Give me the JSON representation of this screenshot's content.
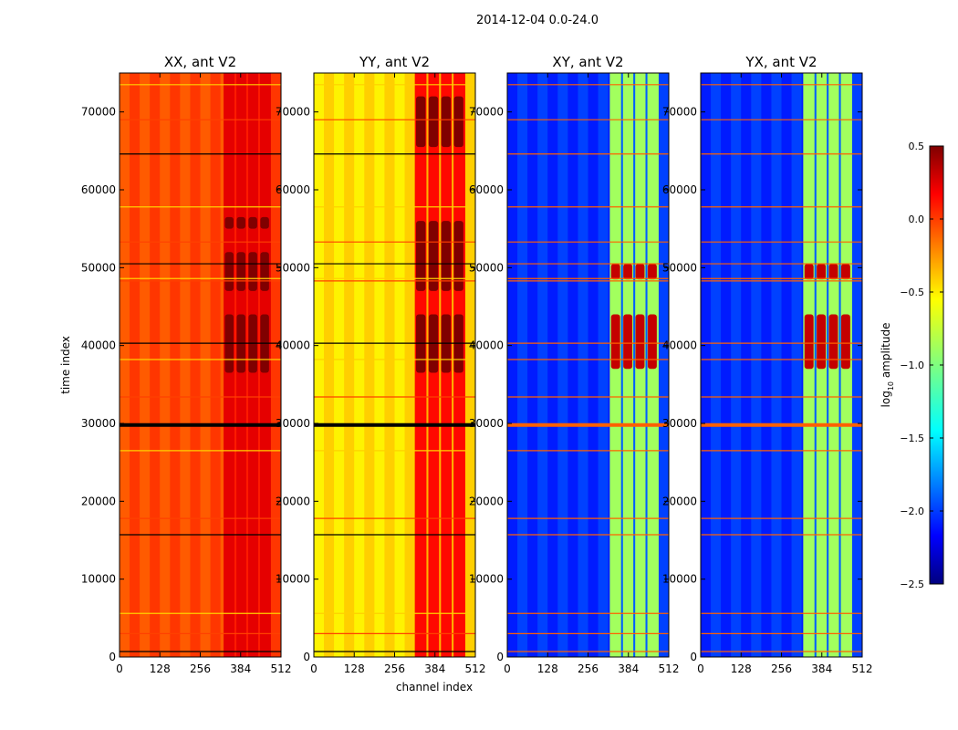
{
  "chart_data": [
    {
      "type": "heatmap",
      "title": "XX, ant V2",
      "xlabel": "",
      "ylabel": "time index",
      "xlim": [
        0,
        512
      ],
      "ylim": [
        0,
        75000
      ],
      "xticks": [
        0,
        128,
        256,
        384,
        512
      ],
      "yticks": [
        0,
        10000,
        20000,
        30000,
        40000,
        50000,
        60000,
        70000
      ],
      "base_value": -0.1,
      "active_band": [
        330,
        480
      ],
      "active_value": 0.2,
      "hot_value": 0.5,
      "hot_ranges": [
        [
          36500,
          44000
        ],
        [
          47000,
          52000
        ],
        [
          55000,
          56500
        ]
      ]
    },
    {
      "type": "heatmap",
      "title": "YY, ant V2",
      "xlabel": "channel index",
      "ylabel": "",
      "xlim": [
        0,
        512
      ],
      "ylim": [
        0,
        75000
      ],
      "xticks": [
        0,
        128,
        256,
        384,
        512
      ],
      "yticks": [
        0,
        10000,
        20000,
        30000,
        40000,
        50000,
        60000,
        70000
      ],
      "base_value": -0.55,
      "active_band": [
        320,
        480
      ],
      "active_value": 0.1,
      "hot_value": 0.5,
      "hot_ranges": [
        [
          36500,
          44000
        ],
        [
          47000,
          56000
        ],
        [
          65500,
          72000
        ]
      ]
    },
    {
      "type": "heatmap",
      "title": "XY, ant V2",
      "xlabel": "",
      "ylabel": "",
      "xlim": [
        0,
        512
      ],
      "ylim": [
        0,
        75000
      ],
      "xticks": [
        0,
        128,
        256,
        384,
        512
      ],
      "yticks": [
        0,
        10000,
        20000,
        30000,
        40000,
        50000,
        60000,
        70000
      ],
      "base_value": -2.0,
      "active_band": [
        325,
        480
      ],
      "active_value": -0.9,
      "hot_value": 0.3,
      "hot_ranges": [
        [
          37000,
          44000
        ],
        [
          48500,
          50500
        ]
      ]
    },
    {
      "type": "heatmap",
      "title": "YX, ant V2",
      "xlabel": "",
      "ylabel": "",
      "xlim": [
        0,
        512
      ],
      "ylim": [
        0,
        75000
      ],
      "xticks": [
        0,
        128,
        256,
        384,
        512
      ],
      "yticks": [
        0,
        10000,
        20000,
        30000,
        40000,
        50000,
        60000,
        70000
      ],
      "base_value": -2.0,
      "active_band": [
        325,
        480
      ],
      "active_value": -0.9,
      "hot_value": 0.3,
      "hot_ranges": [
        [
          37000,
          44000
        ],
        [
          48500,
          50500
        ]
      ]
    }
  ],
  "figure": {
    "suptitle": "2014-12-04 0.0-24.0"
  },
  "colorbar": {
    "label_prefix": "log",
    "label_sub": "10",
    "label_suffix": " amplitude",
    "min": -2.5,
    "max": 0.5,
    "ticks": [
      "0.5",
      "0.0",
      "−0.5",
      "−1.0",
      "−1.5",
      "−2.0",
      "−2.5"
    ],
    "tick_values": [
      0.5,
      0.0,
      -0.5,
      -1.0,
      -1.5,
      -2.0,
      -2.5
    ],
    "colormap": "jet"
  },
  "flag_lines": [
    700,
    3000,
    5600,
    15700,
    17800,
    26500,
    29800,
    33400,
    38200,
    40300,
    48300,
    48600,
    50500,
    53300,
    57800,
    64600,
    69000,
    73500
  ]
}
